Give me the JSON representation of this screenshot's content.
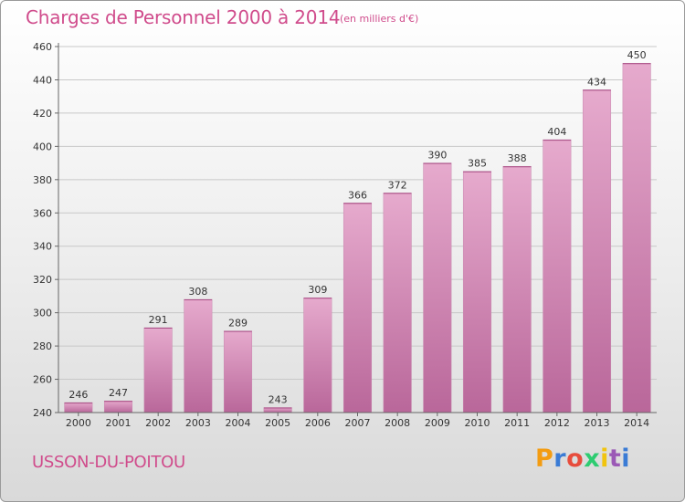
{
  "header": {
    "title": "Charges de Personnel 2000 à 2014",
    "subtitle": "(en milliers d'€)"
  },
  "footer": {
    "place": "USSON-DU-POITOU",
    "brand_letters": [
      "P",
      "r",
      "o",
      "x",
      "i",
      "t",
      "i"
    ],
    "brand_colors": [
      "#f39c12",
      "#3a7bd5",
      "#e74c3c",
      "#2ecc71",
      "#f1c40f",
      "#9b59b6",
      "#3a7bd5"
    ]
  },
  "colors": {
    "bar_light": "#e6aacd",
    "bar_dark": "#b9679a",
    "accent": "#d04c8c"
  },
  "chart_data": {
    "type": "bar",
    "title": "Charges de Personnel 2000 à 2014",
    "subtitle": "(en milliers d'€)",
    "xlabel": "",
    "ylabel": "",
    "categories": [
      "2000",
      "2001",
      "2002",
      "2003",
      "2004",
      "2005",
      "2006",
      "2007",
      "2008",
      "2009",
      "2010",
      "2011",
      "2012",
      "2013",
      "2014"
    ],
    "values": [
      246,
      247,
      291,
      308,
      289,
      243,
      309,
      366,
      372,
      390,
      385,
      388,
      404,
      434,
      450
    ],
    "ylim": [
      240,
      460
    ],
    "yticks": [
      240,
      260,
      280,
      300,
      320,
      340,
      360,
      380,
      400,
      420,
      440,
      460
    ],
    "grid": true
  }
}
